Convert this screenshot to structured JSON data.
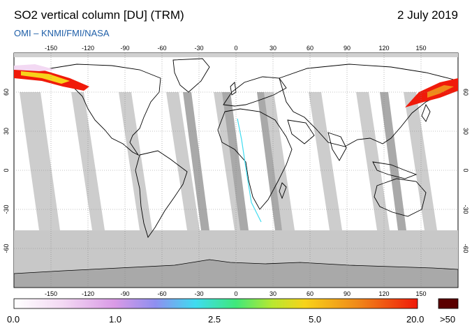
{
  "header": {
    "title": "SO2 vertical column [DU] (TRM)",
    "date": "2 July 2019",
    "credit": "OMI  –  KNMI/FMI/NASA"
  },
  "map": {
    "lon_ticks": [
      "-150",
      "-120",
      "-90",
      "-60",
      "-30",
      "0",
      "30",
      "60",
      "90",
      "120",
      "150"
    ],
    "lat_ticks": [
      "60",
      "30",
      "0",
      "-30",
      "-60"
    ],
    "colors": {
      "ocean_background": "#ffffff",
      "swath_gap": "#c8c8c8",
      "swath_overlap": "#a8a8a8",
      "coastline": "#000000",
      "gridline": "#888888"
    }
  },
  "colorbar": {
    "labels": [
      "0.0",
      "1.0",
      "2.5",
      "5.0",
      "20.0"
    ],
    "overflow_label": ">50",
    "colors": [
      "#ffffff",
      "#f3d9f3",
      "#d99ae6",
      "#8f8ff0",
      "#3fdcf0",
      "#3fe87a",
      "#b8e830",
      "#f7d31a",
      "#f08a1a",
      "#f01a0a"
    ],
    "overflow_color": "#5a0000"
  }
}
